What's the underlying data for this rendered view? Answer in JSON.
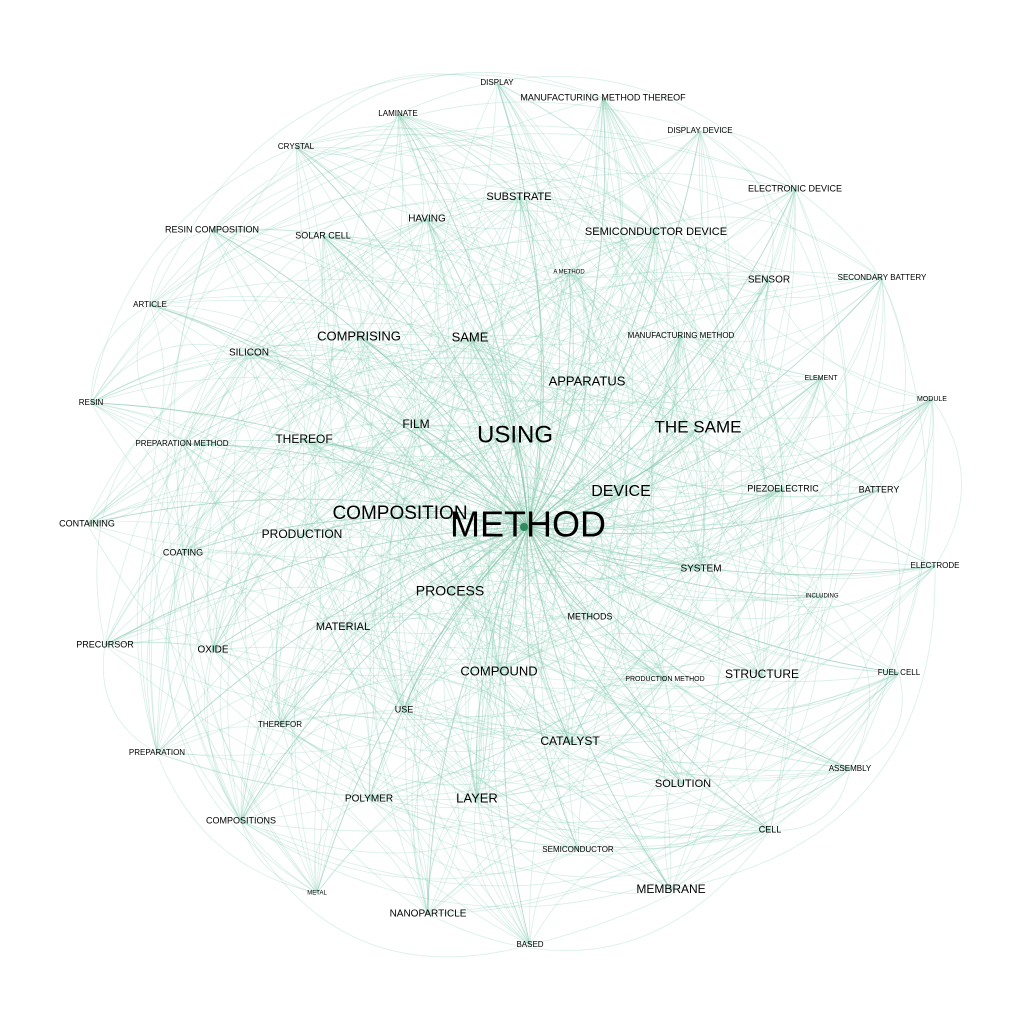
{
  "diagram": {
    "type": "keyword co-occurrence network",
    "edge_color": "#8fd0b8",
    "edge_color_strong": "#5fae8f",
    "hub_color": "#2f8a5e",
    "hub": "METHOD",
    "nodes": [
      {
        "id": "method",
        "label": "METHOD",
        "weight": 40
      },
      {
        "id": "using",
        "label": "USING",
        "weight": 25
      },
      {
        "id": "composition",
        "label": "COMPOSITION",
        "weight": 20
      },
      {
        "id": "the-same",
        "label": "THE SAME",
        "weight": 18
      },
      {
        "id": "device",
        "label": "DEVICE",
        "weight": 17
      },
      {
        "id": "process",
        "label": "PROCESS",
        "weight": 15
      },
      {
        "id": "comprising",
        "label": "COMPRISING",
        "weight": 15
      },
      {
        "id": "apparatus",
        "label": "APPARATUS",
        "weight": 14
      },
      {
        "id": "structure",
        "label": "STRUCTURE",
        "weight": 13
      },
      {
        "id": "compound",
        "label": "COMPOUND",
        "weight": 14
      },
      {
        "id": "layer",
        "label": "LAYER",
        "weight": 14
      },
      {
        "id": "same",
        "label": "SAME",
        "weight": 14
      },
      {
        "id": "production",
        "label": "PRODUCTION",
        "weight": 13
      },
      {
        "id": "membrane",
        "label": "MEMBRANE",
        "weight": 13
      },
      {
        "id": "thereof",
        "label": "THEREOF",
        "weight": 13
      },
      {
        "id": "catalyst",
        "label": "CATALYST",
        "weight": 12
      },
      {
        "id": "film",
        "label": "FILM",
        "weight": 12
      },
      {
        "id": "semiconductor-device",
        "label": "SEMICONDUCTOR DEVICE",
        "weight": 12
      },
      {
        "id": "substrate",
        "label": "SUBSTRATE",
        "weight": 12
      },
      {
        "id": "solution",
        "label": "SOLUTION",
        "weight": 12
      },
      {
        "id": "material",
        "label": "MATERIAL",
        "weight": 12
      },
      {
        "id": "sensor",
        "label": "SENSOR",
        "weight": 11
      },
      {
        "id": "system",
        "label": "SYSTEM",
        "weight": 11
      },
      {
        "id": "nanoparticle",
        "label": "NANOPARTICLE",
        "weight": 11
      },
      {
        "id": "having",
        "label": "HAVING",
        "weight": 11
      },
      {
        "id": "polymer",
        "label": "POLYMER",
        "weight": 10
      },
      {
        "id": "silicon",
        "label": "SILICON",
        "weight": 10
      },
      {
        "id": "oxide",
        "label": "OXIDE",
        "weight": 10
      },
      {
        "id": "precursor",
        "label": "PRECURSOR",
        "weight": 10
      },
      {
        "id": "resin-composition",
        "label": "RESIN COMPOSITION",
        "weight": 10
      },
      {
        "id": "use",
        "label": "USE",
        "weight": 10
      },
      {
        "id": "battery",
        "label": "BATTERY",
        "weight": 9
      },
      {
        "id": "piezoelectric",
        "label": "PIEZOELECTRIC",
        "weight": 9
      },
      {
        "id": "methods",
        "label": "METHODS",
        "weight": 9
      },
      {
        "id": "coating",
        "label": "COATING",
        "weight": 9
      },
      {
        "id": "containing",
        "label": "CONTAINING",
        "weight": 9
      },
      {
        "id": "compositions",
        "label": "COMPOSITIONS",
        "weight": 9
      },
      {
        "id": "solar-cell",
        "label": "SOLAR CELL",
        "weight": 9
      },
      {
        "id": "cell",
        "label": "CELL",
        "weight": 9
      },
      {
        "id": "electronic-device",
        "label": "ELECTRONIC DEVICE",
        "weight": 9
      },
      {
        "id": "manufacturing-method-thereof",
        "label": "MANUFACTURING METHOD THEREOF",
        "weight": 9
      },
      {
        "id": "display",
        "label": "DISPLAY",
        "weight": 8
      },
      {
        "id": "manufacturing-method",
        "label": "MANUFACTURING METHOD",
        "weight": 8
      },
      {
        "id": "crystal",
        "label": "CRYSTAL",
        "weight": 8
      },
      {
        "id": "laminate",
        "label": "LAMINATE",
        "weight": 8
      },
      {
        "id": "display-device",
        "label": "DISPLAY DEVICE",
        "weight": 8
      },
      {
        "id": "secondary-battery",
        "label": "SECONDARY BATTERY",
        "weight": 8
      },
      {
        "id": "article",
        "label": "ARTICLE",
        "weight": 8
      },
      {
        "id": "resin",
        "label": "RESIN",
        "weight": 8
      },
      {
        "id": "preparation-method",
        "label": "PREPARATION METHOD",
        "weight": 8
      },
      {
        "id": "preparation",
        "label": "PREPARATION",
        "weight": 8
      },
      {
        "id": "therefor",
        "label": "THEREFOR",
        "weight": 8
      },
      {
        "id": "semiconductor",
        "label": "SEMICONDUCTOR",
        "weight": 8
      },
      {
        "id": "based",
        "label": "BASED",
        "weight": 8
      },
      {
        "id": "assembly",
        "label": "ASSEMBLY",
        "weight": 7
      },
      {
        "id": "fuel-cell",
        "label": "FUEL CELL",
        "weight": 7
      },
      {
        "id": "electrode",
        "label": "ELECTRODE",
        "weight": 7
      },
      {
        "id": "element",
        "label": "ELEMENT",
        "weight": 7
      },
      {
        "id": "module",
        "label": "MODULE",
        "weight": 7
      },
      {
        "id": "production-method",
        "label": "PRODUCTION METHOD",
        "weight": 7
      },
      {
        "id": "including",
        "label": "INCLUDING",
        "weight": 6
      },
      {
        "id": "a-method",
        "label": "A METHOD",
        "weight": 6
      },
      {
        "id": "metal",
        "label": "METAL",
        "weight": 5
      }
    ]
  }
}
